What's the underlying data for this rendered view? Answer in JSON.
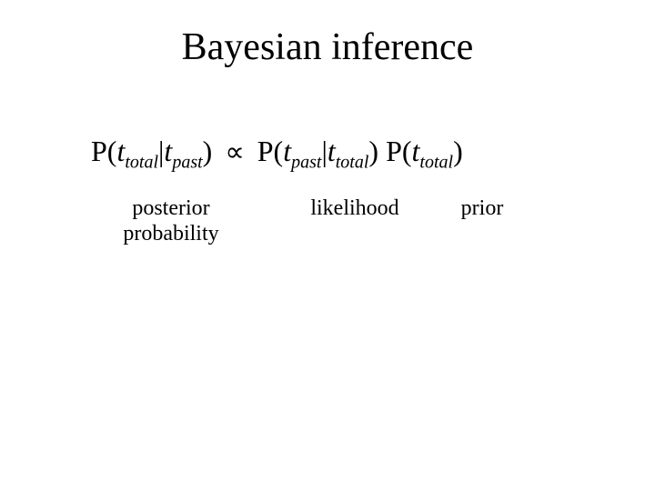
{
  "title": "Bayesian inference",
  "formula": {
    "posterior": {
      "P": "P(",
      "t1": "t",
      "sub1": "total",
      "bar": "|",
      "t2": "t",
      "sub2": "past",
      "close": ")"
    },
    "propto": "∝",
    "likelihood": {
      "P": "P(",
      "t1": "t",
      "sub1": "past",
      "bar": "|",
      "t2": "t",
      "sub2": "total",
      "close": ")"
    },
    "prior": {
      "P": "P(",
      "t1": "t",
      "sub1": "total",
      "close": ")"
    }
  },
  "labels": {
    "posterior_line1": "posterior",
    "posterior_line2": "probability",
    "likelihood": "likelihood",
    "prior": "prior"
  },
  "style": {
    "background_color": "#ffffff",
    "text_color": "#000000",
    "title_fontsize": 42,
    "formula_fontsize": 32,
    "label_fontsize": 24,
    "font_family": "Times New Roman"
  }
}
